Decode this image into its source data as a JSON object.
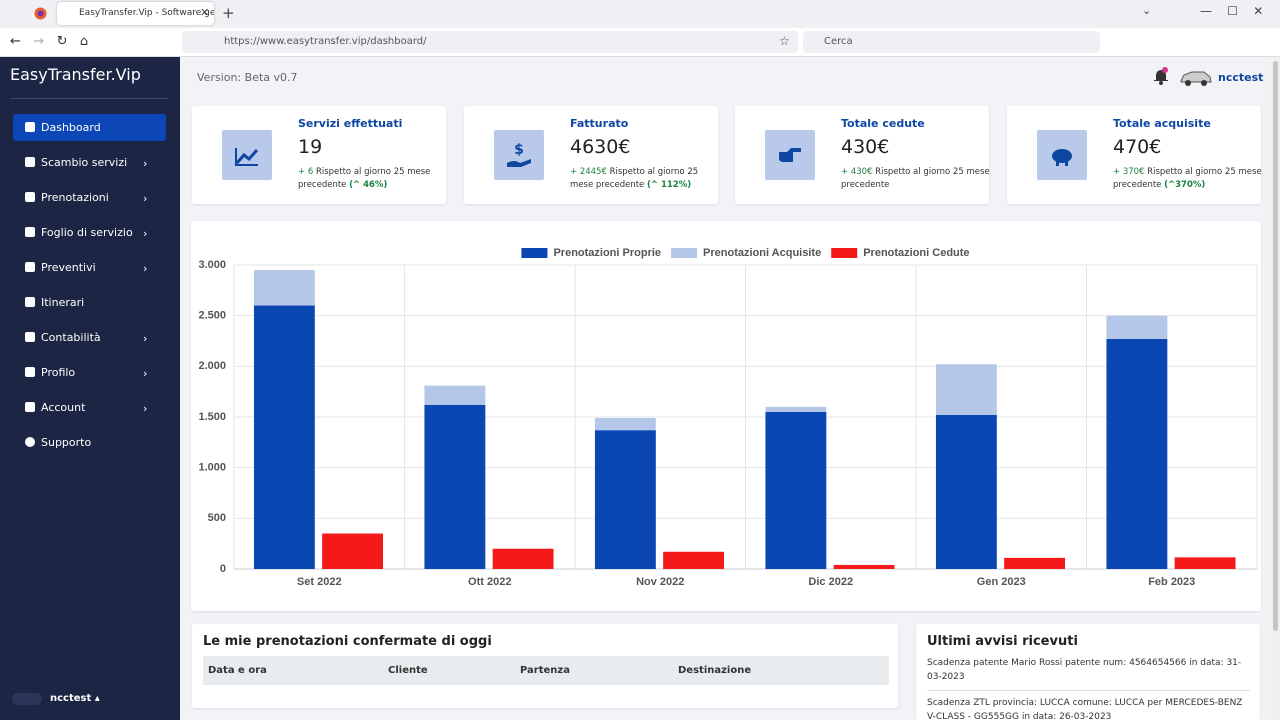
{
  "browser": {
    "tab_title": "EasyTransfer.Vip - Software ge",
    "url": "https://www.easytransfer.vip/dashboard/",
    "search_placeholder": "Cerca"
  },
  "sidebar": {
    "brand": "EasyTransfer.Vip",
    "items": [
      "Dashboard",
      "Scambio servizi",
      "Prenotazioni",
      "Foglio di servizio",
      "Preventivi",
      "Itinerari",
      "Contabilità",
      "Profilo",
      "Account",
      "Supporto"
    ],
    "user": "ncctest"
  },
  "header": {
    "version": "Version: Beta v0.7",
    "user": "ncctest"
  },
  "cards": [
    {
      "title": "Servizi effettuati",
      "value": "19",
      "change": "+ 6",
      "note": "Rispetto al giorno 25 mese precedente",
      "percent": "46%"
    },
    {
      "title": "Fatturato",
      "value": "4630€",
      "change": "+ 2445€",
      "note": "Rispetto al giorno 25 mese precedente",
      "percent": "112%"
    },
    {
      "title": "Totale cedute",
      "value": "430€",
      "change": "+ 430€",
      "note": "Rispetto al giorno 25 mese precedente"
    },
    {
      "title": "Totale acquisite",
      "value": "470€",
      "change": "+ 370€",
      "note": "Rispetto al giorno 25 mese precedente",
      "percent": "370%"
    }
  ],
  "chart_data": {
    "type": "bar",
    "categories": [
      "Set 2022",
      "Ott 2022",
      "Nov 2022",
      "Dic 2022",
      "Gen 2023",
      "Feb 2023"
    ],
    "series": [
      {
        "name": "Prenotazioni Proprie",
        "color": "#0b47b3",
        "stack": 0,
        "values": [
          2600,
          1620,
          1370,
          1550,
          1520,
          2270
        ]
      },
      {
        "name": "Prenotazioni Acquisite",
        "color": "#b5c7e8",
        "stack": 0,
        "values": [
          350,
          190,
          120,
          50,
          500,
          230
        ]
      },
      {
        "name": "Prenotazioni Cedute",
        "color": "#f41a1a",
        "stack": 1,
        "values": [
          350,
          200,
          170,
          40,
          110,
          115
        ]
      }
    ],
    "ylim": [
      0,
      3000
    ],
    "yticks": [
      0,
      500,
      {
        "value": 1000,
        "label": "1.000"
      },
      {
        "value": 1500,
        "label": "1.500"
      },
      {
        "value": 2000,
        "label": "2.000"
      },
      {
        "value": 2500,
        "label": "2.500"
      },
      {
        "value": 3000,
        "label": "3.000"
      }
    ],
    "grid": true,
    "legend": "top"
  },
  "bookings": {
    "title": "Le mie prenotazioni confermate di oggi",
    "columns": [
      "Data e ora",
      "Cliente",
      "Partenza",
      "Destinazione"
    ]
  },
  "notices": {
    "title": "Ultimi avvisi ricevuti",
    "items": [
      "Scadenza patente Mario Rossi patente num: 4564654566 in data: 31-03-2023",
      "Scadenza ZTL provincia: LUCCA comune: LUCCA per MERCEDES-BENZ V-CLASS - GG555GG in data: 26-03-2023"
    ]
  }
}
